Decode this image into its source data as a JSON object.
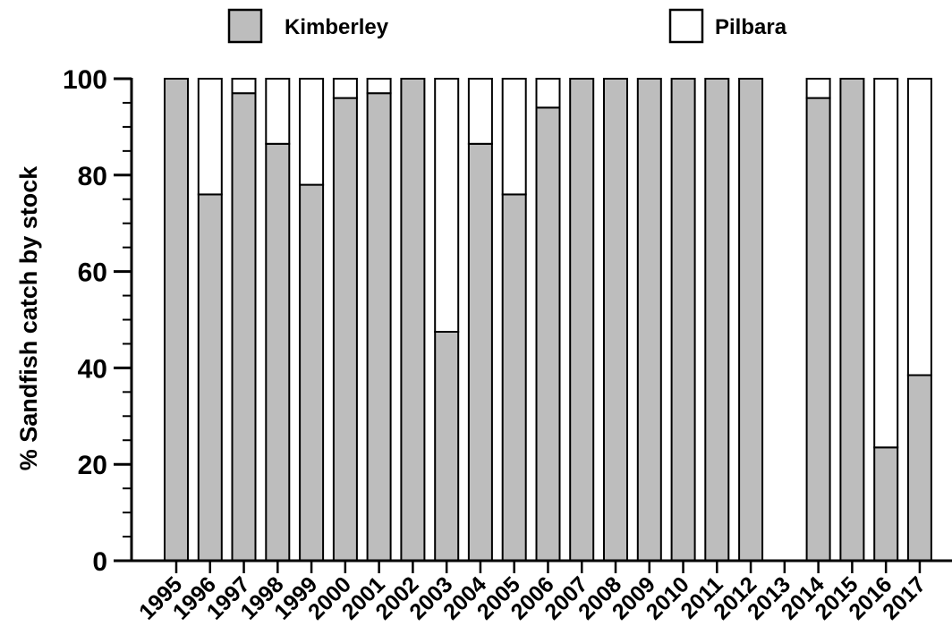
{
  "chart_data": {
    "type": "bar",
    "stacked": true,
    "xlabel": "",
    "ylabel": "% Sandfish catch by stock",
    "ylim": [
      0,
      100
    ],
    "yticks": [
      0,
      20,
      40,
      60,
      80,
      100
    ],
    "categories": [
      "1995",
      "1996",
      "1997",
      "1998",
      "1999",
      "2000",
      "2001",
      "2002",
      "2003",
      "2004",
      "2005",
      "2006",
      "2007",
      "2008",
      "2009",
      "2010",
      "2011",
      "2012",
      "2013",
      "2014",
      "2015",
      "2016",
      "2017"
    ],
    "series": [
      {
        "name": "Kimberley",
        "color": "#bdbdbd",
        "values": [
          100,
          76,
          97,
          86.5,
          78,
          96,
          97,
          100,
          47.5,
          86.5,
          76,
          94,
          100,
          100,
          100,
          100,
          100,
          100,
          0,
          96,
          100,
          23.5,
          38.5
        ]
      },
      {
        "name": "Pilbara",
        "color": "#ffffff",
        "values": [
          0,
          24,
          3,
          13.5,
          22,
          4,
          3,
          0,
          52.5,
          13.5,
          24,
          6,
          0,
          0,
          0,
          0,
          0,
          0,
          0,
          4,
          0,
          76.5,
          61.5
        ]
      }
    ],
    "legend_position": "top",
    "grid": false
  }
}
